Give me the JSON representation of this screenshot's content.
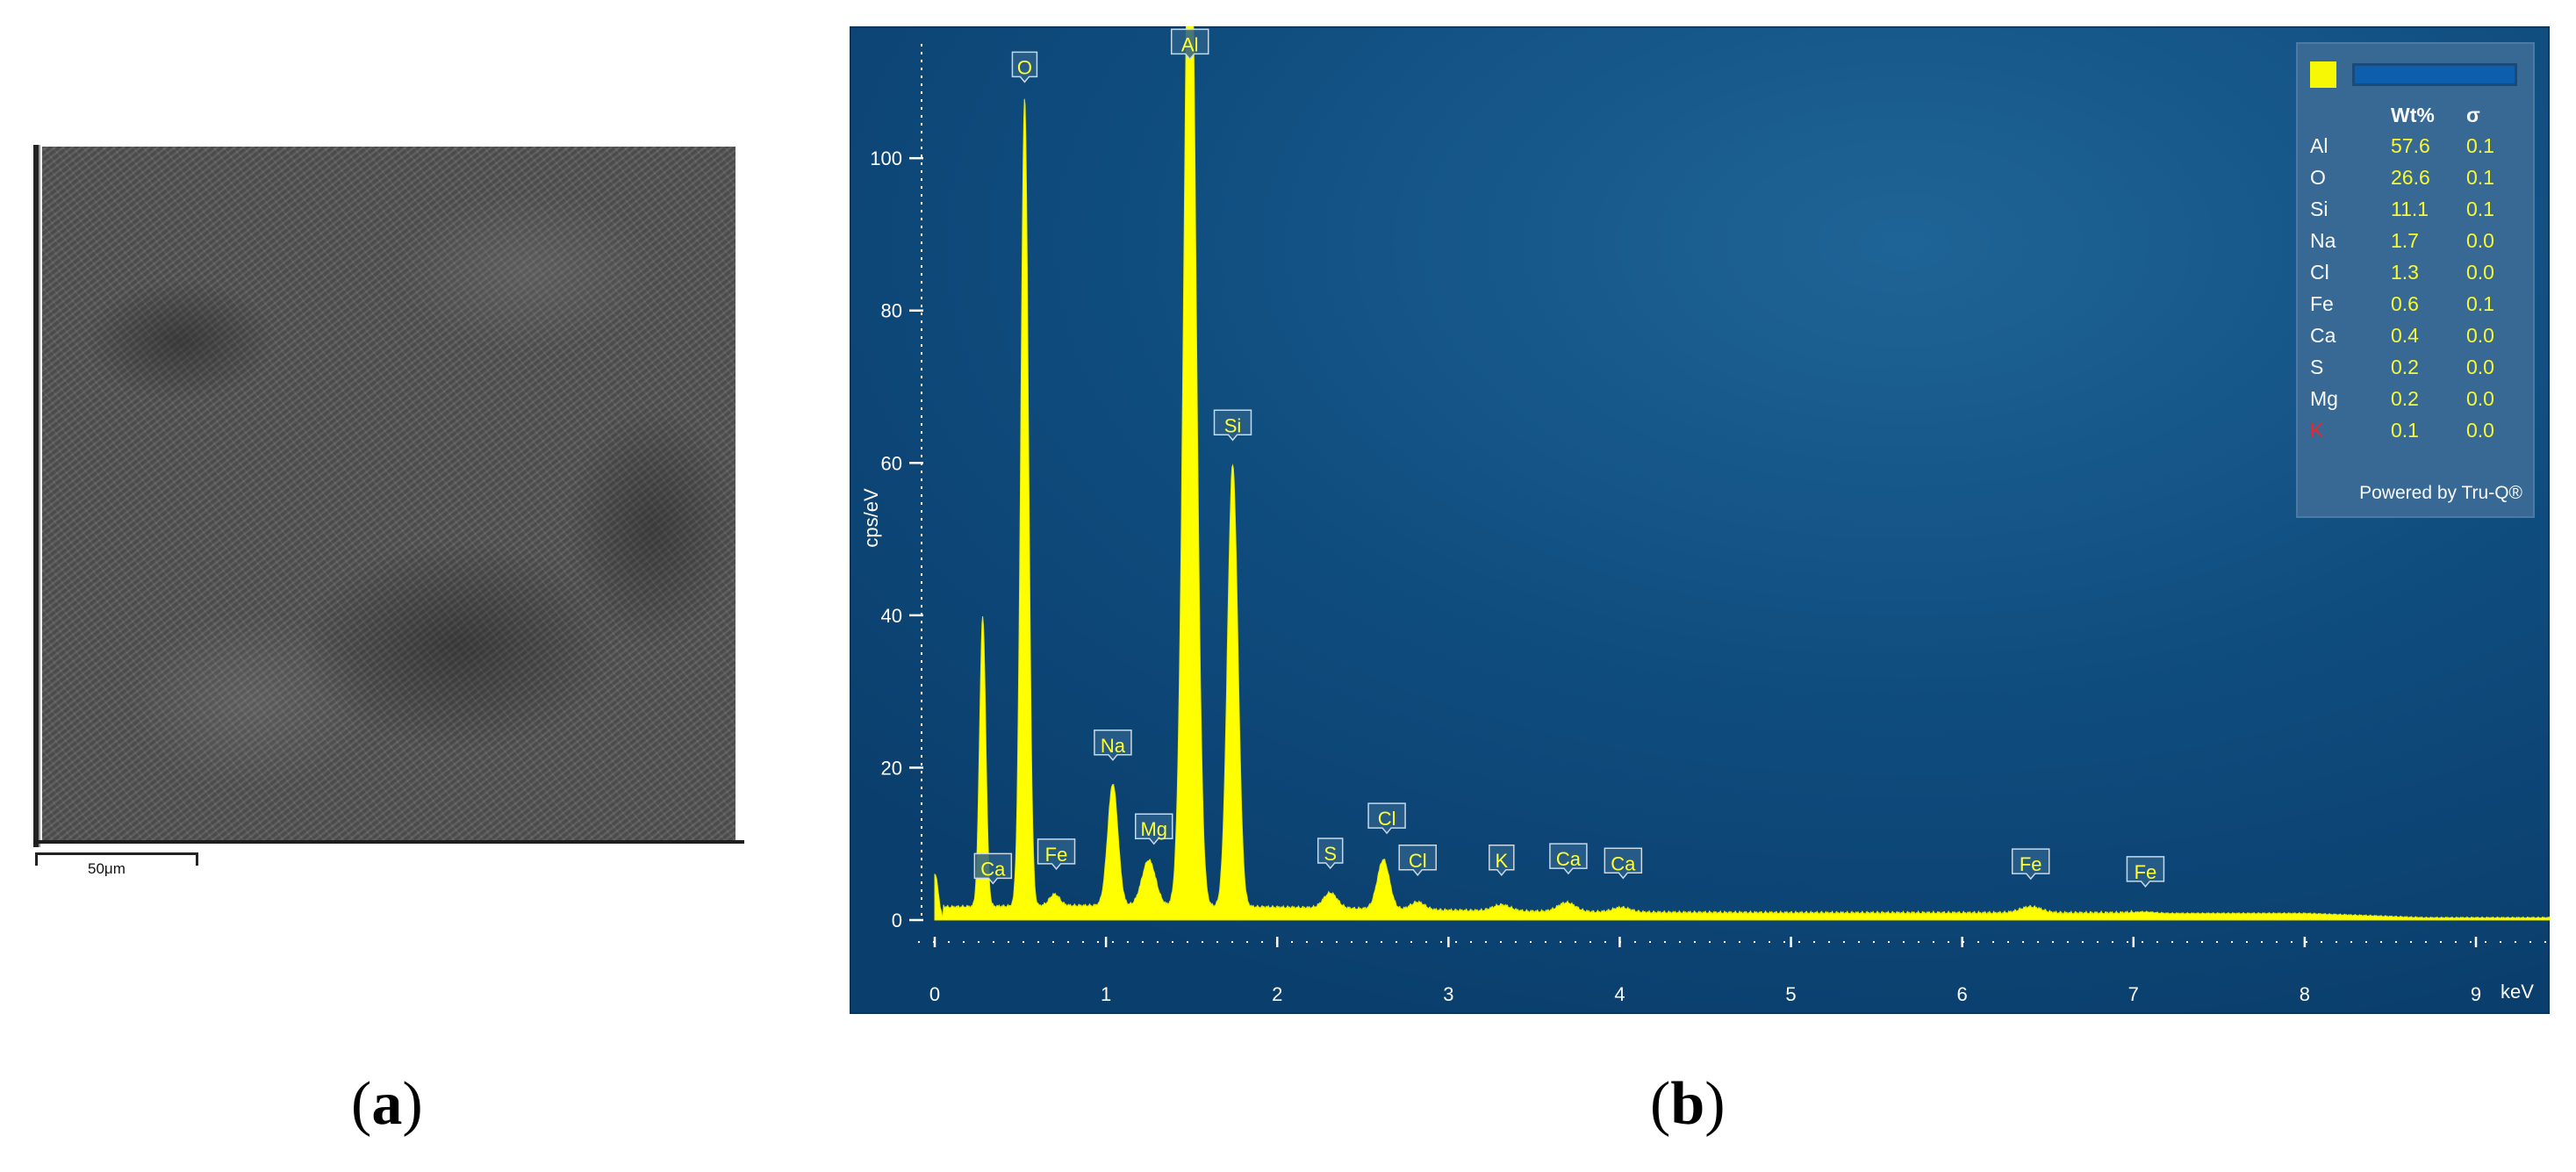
{
  "panel_labels": {
    "a": "a",
    "b": "b"
  },
  "sem": {
    "scale_label": "50μm"
  },
  "colors": {
    "spectrum": "#ffff00",
    "background": "#0d4677",
    "axis": "#ffffff",
    "table_panel": "#3a6a96"
  },
  "quant_table": {
    "headers": [
      "",
      "Wt%",
      "σ"
    ],
    "rows": [
      {
        "element": "Al",
        "wt": "57.6",
        "sigma": "0.1"
      },
      {
        "element": "O",
        "wt": "26.6",
        "sigma": "0.1"
      },
      {
        "element": "Si",
        "wt": "11.1",
        "sigma": "0.1"
      },
      {
        "element": "Na",
        "wt": "1.7",
        "sigma": "0.0"
      },
      {
        "element": "Cl",
        "wt": "1.3",
        "sigma": "0.0"
      },
      {
        "element": "Fe",
        "wt": "0.6",
        "sigma": "0.1"
      },
      {
        "element": "Ca",
        "wt": "0.4",
        "sigma": "0.0"
      },
      {
        "element": "S",
        "wt": "0.2",
        "sigma": "0.0"
      },
      {
        "element": "Mg",
        "wt": "0.2",
        "sigma": "0.0"
      },
      {
        "element": "K",
        "wt": "0.1",
        "sigma": "0.0",
        "flagged": true
      }
    ],
    "footer": "Powered by Tru-Q®"
  },
  "chart_data": {
    "type": "area",
    "title": "",
    "xlabel": "keV",
    "ylabel": "cps/eV",
    "xlim": [
      -0.2,
      9.6
    ],
    "ylim": [
      0,
      115
    ],
    "x_ticks": [
      0,
      1,
      2,
      3,
      4,
      5,
      6,
      7,
      8,
      9
    ],
    "y_ticks": [
      0,
      20,
      40,
      60,
      80,
      100
    ],
    "grid": false,
    "legend": "top-right",
    "background": 0.8,
    "peaks": [
      {
        "x": 0.0,
        "y": 6,
        "w": 0.02
      },
      {
        "x": 0.28,
        "y": 38,
        "w": 0.018
      },
      {
        "x": 0.525,
        "y": 106,
        "w": 0.022
      },
      {
        "x": 0.7,
        "y": 1.5,
        "w": 0.03
      },
      {
        "x": 1.04,
        "y": 16,
        "w": 0.03
      },
      {
        "x": 1.25,
        "y": 6,
        "w": 0.04
      },
      {
        "x": 1.49,
        "y": 140,
        "w": 0.035
      },
      {
        "x": 1.74,
        "y": 58,
        "w": 0.03
      },
      {
        "x": 2.31,
        "y": 2,
        "w": 0.04
      },
      {
        "x": 2.62,
        "y": 6.5,
        "w": 0.035
      },
      {
        "x": 2.82,
        "y": 1,
        "w": 0.04
      },
      {
        "x": 3.31,
        "y": 0.8,
        "w": 0.05
      },
      {
        "x": 3.69,
        "y": 1.2,
        "w": 0.05
      },
      {
        "x": 4.01,
        "y": 0.6,
        "w": 0.05
      },
      {
        "x": 6.4,
        "y": 0.8,
        "w": 0.06
      },
      {
        "x": 7.06,
        "y": 0.2,
        "w": 0.06
      }
    ],
    "peak_labels": [
      {
        "text": "O",
        "x": 0.525,
        "y": 110
      },
      {
        "text": "Al",
        "x": 1.49,
        "y": 113
      },
      {
        "text": "Si",
        "x": 1.74,
        "y": 63
      },
      {
        "text": "Na",
        "x": 1.04,
        "y": 21
      },
      {
        "text": "Mg",
        "x": 1.28,
        "y": 10
      },
      {
        "text": "Ca",
        "x": 0.34,
        "y": 4.8
      },
      {
        "text": "Fe",
        "x": 0.71,
        "y": 6.7
      },
      {
        "text": "S",
        "x": 2.31,
        "y": 6.8
      },
      {
        "text": "Cl",
        "x": 2.64,
        "y": 11.4
      },
      {
        "text": "Cl",
        "x": 2.82,
        "y": 5.9
      },
      {
        "text": "K",
        "x": 3.31,
        "y": 5.9
      },
      {
        "text": "Ca",
        "x": 3.7,
        "y": 6.1
      },
      {
        "text": "Ca",
        "x": 4.02,
        "y": 5.5
      },
      {
        "text": "Fe",
        "x": 6.4,
        "y": 5.4
      },
      {
        "text": "Fe",
        "x": 7.07,
        "y": 4.4
      }
    ]
  }
}
